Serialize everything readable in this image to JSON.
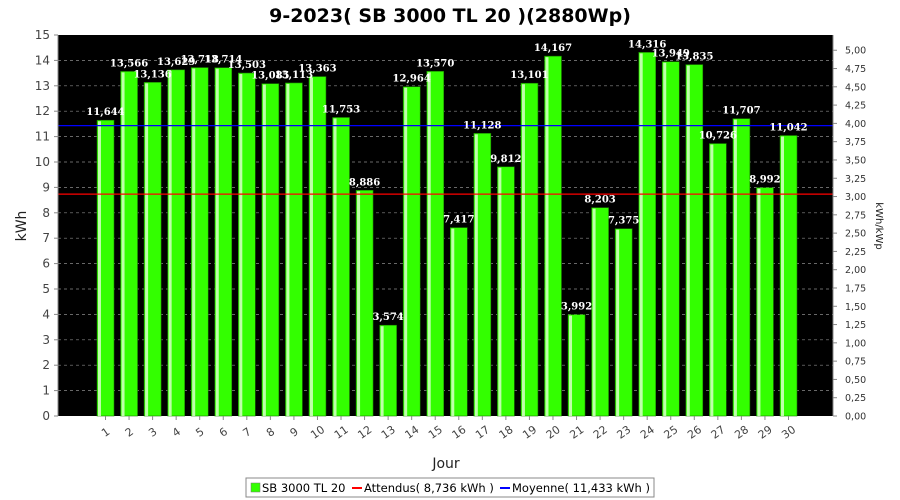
{
  "chart_data": {
    "type": "bar",
    "title": "9-2023( SB 3000 TL 20 )(2880Wp)",
    "xlabel": "Jour",
    "ylabel": "kWh",
    "y2label": "kWh/kWp",
    "ylim": [
      0,
      15
    ],
    "y2lim": [
      0,
      5.2083
    ],
    "yticks": [
      "0",
      "1",
      "2",
      "3",
      "4",
      "5",
      "6",
      "7",
      "8",
      "9",
      "10",
      "11",
      "12",
      "13",
      "14",
      "15"
    ],
    "y2ticks": [
      "0,00",
      "0,25",
      "0,50",
      "0,75",
      "1,00",
      "1,25",
      "1,50",
      "1,75",
      "2,00",
      "2,25",
      "2,50",
      "2,75",
      "3,00",
      "3,25",
      "3,50",
      "3,75",
      "4,00",
      "4,25",
      "4,50",
      "4,75",
      "5,00"
    ],
    "categories": [
      "1",
      "2",
      "3",
      "4",
      "5",
      "6",
      "7",
      "8",
      "9",
      "10",
      "11",
      "12",
      "13",
      "14",
      "15",
      "16",
      "17",
      "18",
      "19",
      "20",
      "21",
      "22",
      "23",
      "24",
      "25",
      "26",
      "27",
      "28",
      "29",
      "30"
    ],
    "series": [
      {
        "name": "SB 3000 TL 20",
        "color": "#33ff00",
        "values": [
          11.644,
          13.566,
          13.136,
          13.629,
          13.718,
          13.714,
          13.503,
          13.085,
          13.113,
          13.363,
          11.753,
          8.886,
          3.574,
          12.964,
          13.57,
          7.417,
          11.128,
          9.812,
          13.101,
          14.167,
          3.992,
          8.203,
          7.375,
          14.316,
          13.949,
          13.835,
          10.726,
          11.707,
          8.992,
          11.042
        ],
        "labels": [
          "11,644",
          "13,566",
          "13,136",
          "13,629",
          "13,718",
          "13,714",
          "13,503",
          "13,085",
          "13,113",
          "13,363",
          "11,753",
          "8,886",
          "3,574",
          "12,964",
          "13,570",
          "7,417",
          "11,128",
          "9,812",
          "13,101",
          "14,167",
          "3,992",
          "8,203",
          "7,375",
          "14,316",
          "13,949",
          "13,835",
          "10,726",
          "11,707",
          "8,992",
          "11,042"
        ]
      }
    ],
    "reference_lines": [
      {
        "name": "Attendus",
        "value": 8.736,
        "color": "#ff0000"
      },
      {
        "name": "Moyenne",
        "value": 11.433,
        "color": "#0000ff"
      }
    ],
    "grid": true,
    "background": "#000000",
    "legend": {
      "placement": "bottom-center",
      "items": [
        "SB 3000 TL 20",
        "Attendus( 8,736 kWh )",
        "Moyenne( 11,433 kWh )"
      ]
    }
  }
}
